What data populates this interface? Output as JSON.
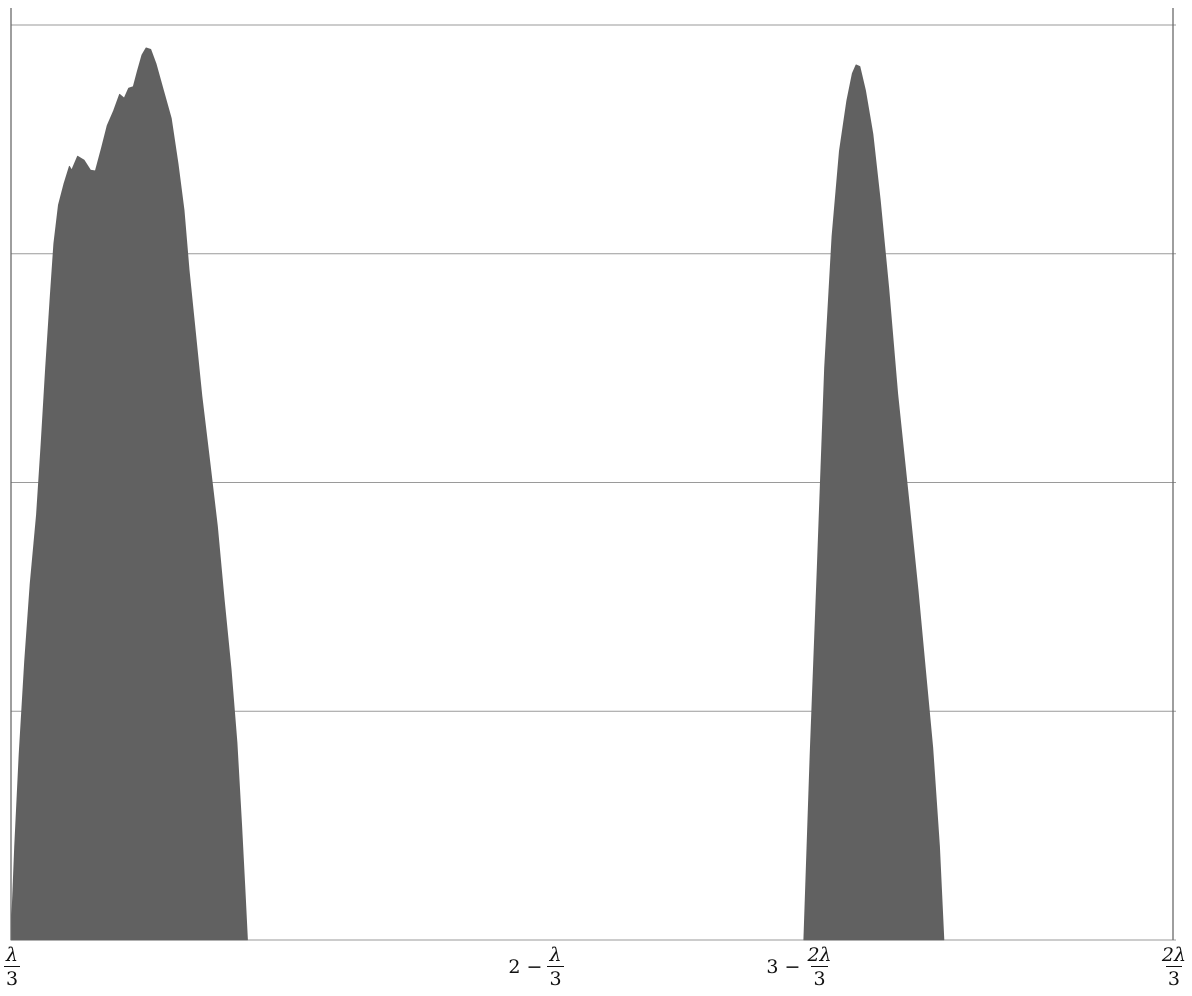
{
  "chart_data": {
    "type": "area",
    "title": "",
    "xlabel": "",
    "ylabel": "",
    "grid": true,
    "y_gridlines": 4,
    "colors": {
      "fill": "#616161",
      "grid": "#9a9a9a",
      "axis": "#6a6a6a"
    },
    "x_ticks": [
      {
        "prefix": "",
        "num": "λ",
        "den": "3"
      },
      {
        "prefix": "2 −",
        "num": "λ",
        "den": "3"
      },
      {
        "prefix": "3 −",
        "num": "2λ",
        "den": "3"
      },
      {
        "prefix": "",
        "num": "2λ",
        "den": "3"
      }
    ],
    "series": [
      {
        "values": [
          [
            0.0,
            0.0
          ],
          [
            0.008,
            0.12
          ],
          [
            0.018,
            0.24
          ],
          [
            0.03,
            0.36
          ],
          [
            0.042,
            0.46
          ],
          [
            0.056,
            0.55
          ],
          [
            0.066,
            0.64
          ],
          [
            0.076,
            0.74
          ],
          [
            0.086,
            0.83
          ],
          [
            0.094,
            0.9
          ],
          [
            0.104,
            0.95
          ],
          [
            0.116,
            0.977
          ],
          [
            0.128,
            1.0
          ],
          [
            0.133,
            0.995
          ],
          [
            0.146,
            1.013
          ],
          [
            0.16,
            1.008
          ],
          [
            0.174,
            0.995
          ],
          [
            0.185,
            0.994
          ],
          [
            0.198,
            1.023
          ],
          [
            0.211,
            1.053
          ],
          [
            0.225,
            1.072
          ],
          [
            0.238,
            1.093
          ],
          [
            0.248,
            1.088
          ],
          [
            0.258,
            1.101
          ],
          [
            0.268,
            1.103
          ],
          [
            0.277,
            1.123
          ],
          [
            0.287,
            1.144
          ],
          [
            0.296,
            1.153
          ],
          [
            0.306,
            1.151
          ],
          [
            0.318,
            1.132
          ],
          [
            0.334,
            1.098
          ],
          [
            0.351,
            1.062
          ],
          [
            0.366,
            1.003
          ],
          [
            0.379,
            0.943
          ],
          [
            0.39,
            0.866
          ],
          [
            0.403,
            0.791
          ],
          [
            0.418,
            0.703
          ],
          [
            0.436,
            0.615
          ],
          [
            0.452,
            0.535
          ],
          [
            0.467,
            0.44
          ],
          [
            0.482,
            0.35
          ],
          [
            0.495,
            0.255
          ],
          [
            0.505,
            0.15
          ],
          [
            0.513,
            0.06
          ],
          [
            0.518,
            0.0
          ]
        ]
      },
      {
        "values": [
          [
            0.0,
            0.0
          ],
          [
            0.017,
            0.24
          ],
          [
            0.036,
            0.48
          ],
          [
            0.056,
            0.74
          ],
          [
            0.076,
            0.91
          ],
          [
            0.096,
            1.02
          ],
          [
            0.116,
            1.085
          ],
          [
            0.131,
            1.12
          ],
          [
            0.141,
            1.131
          ],
          [
            0.151,
            1.129
          ],
          [
            0.166,
            1.098
          ],
          [
            0.186,
            1.042
          ],
          [
            0.206,
            0.956
          ],
          [
            0.229,
            0.842
          ],
          [
            0.253,
            0.706
          ],
          [
            0.283,
            0.569
          ],
          [
            0.308,
            0.453
          ],
          [
            0.328,
            0.35
          ],
          [
            0.348,
            0.248
          ],
          [
            0.366,
            0.121
          ],
          [
            0.378,
            0.0
          ]
        ]
      }
    ]
  }
}
